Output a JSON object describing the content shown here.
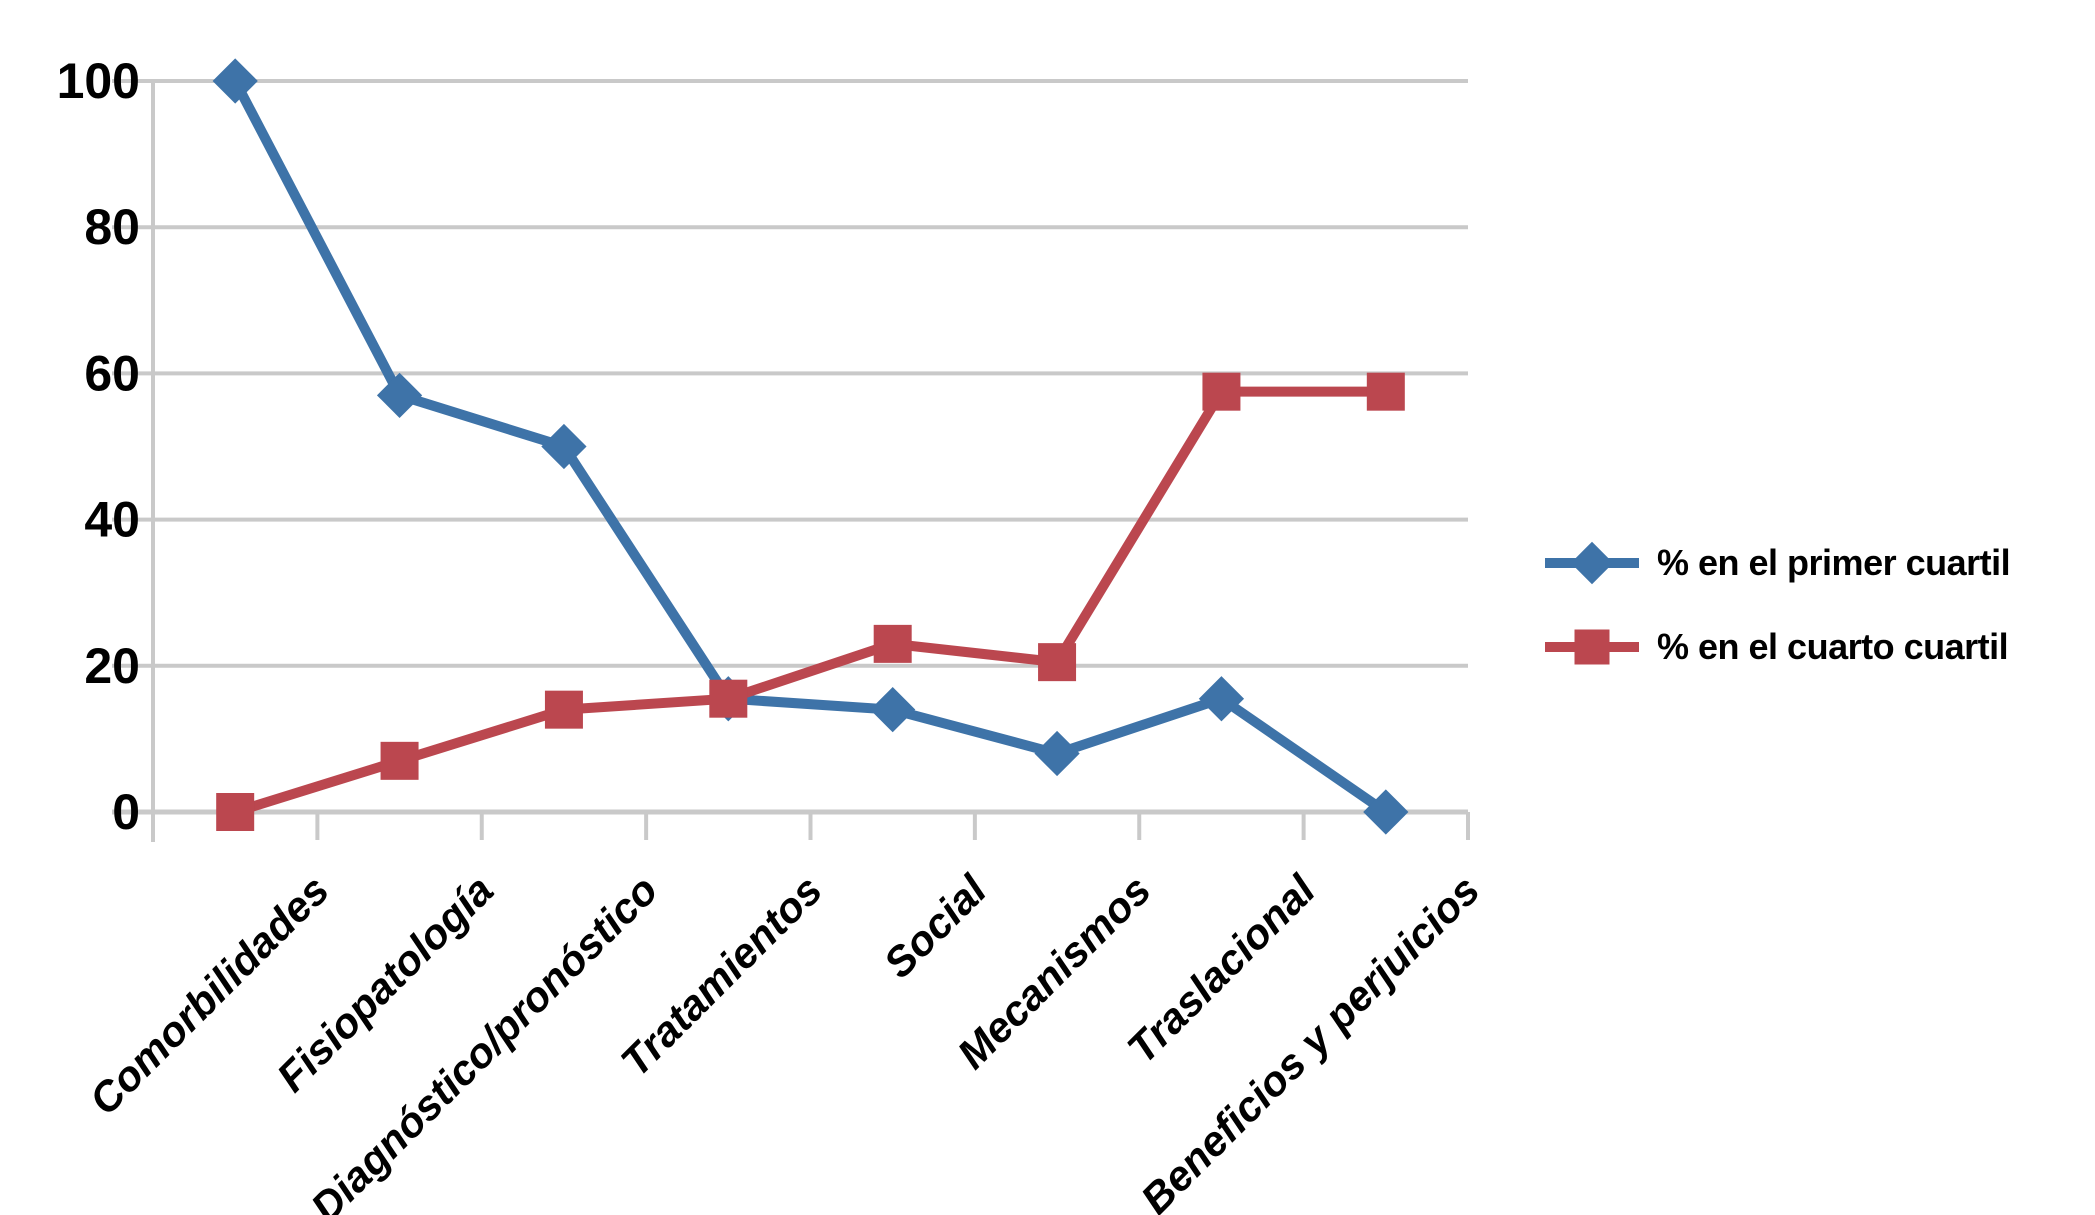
{
  "chart_data": {
    "type": "line",
    "title": "",
    "xlabel": "",
    "ylabel": "",
    "categories": [
      "Comorbilidades",
      "Fisiopatología",
      "Diagnóstico/pronóstico",
      "Tratamientos",
      "Social",
      "Mecanismos",
      "Traslacional",
      "Beneficios y perjuicios"
    ],
    "series": [
      {
        "name": "% en el primer cuartil",
        "marker": "diamond",
        "color": "#3E73A8",
        "values": [
          100,
          57,
          50,
          15.5,
          14,
          8,
          15.5,
          0
        ]
      },
      {
        "name": "% en el cuarto cuartil",
        "marker": "square",
        "color": "#BB474F",
        "values": [
          0,
          7,
          14,
          15.5,
          23,
          20.5,
          57.5,
          57.5
        ]
      }
    ],
    "ylim": [
      0,
      100
    ],
    "yticks": [
      0,
      20,
      40,
      60,
      80,
      100
    ],
    "grid": true,
    "gridline_color": "#C9C9C9",
    "axis_text_color": "#000000",
    "legend_position": "right"
  }
}
